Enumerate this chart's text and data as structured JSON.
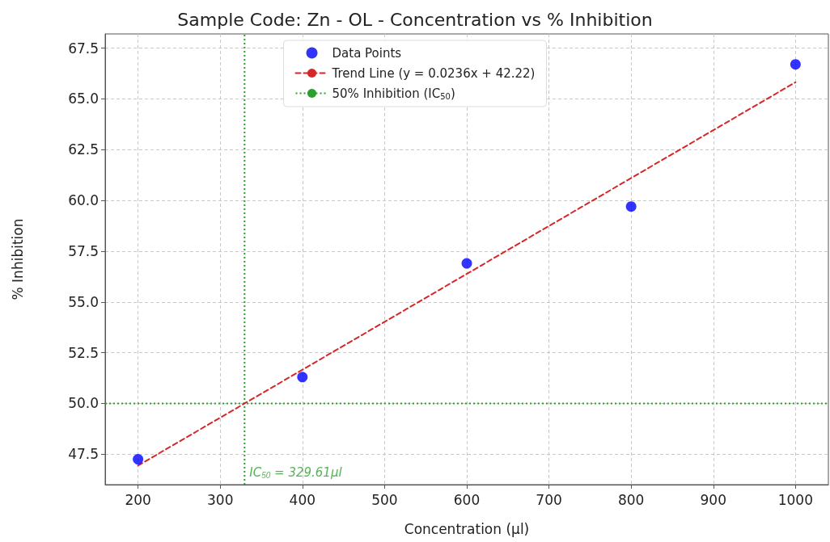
{
  "chart_data": {
    "type": "scatter",
    "title": "Sample Code: Zn - OL - Concentration vs % Inhibition",
    "xlabel": "Concentration (μl)",
    "ylabel": "% Inhibition",
    "x": [
      200,
      400,
      600,
      800,
      1000
    ],
    "series": [
      {
        "name": "Data Points",
        "color": "#0000ff",
        "marker": "circle",
        "values": [
          47.25,
          51.3,
          56.9,
          59.7,
          66.7
        ]
      },
      {
        "name": "Trend Line (y = 0.0236x + 42.22)",
        "type": "line",
        "color": "#d62728",
        "line_style": "dashed",
        "marker": "none",
        "x": [
          200,
          1000
        ],
        "values": [
          46.94,
          65.82
        ]
      }
    ],
    "ref_lines": [
      {
        "axis": "y",
        "value": 50,
        "label": "50% Inhibition (IC$_{50}$)",
        "color": "#2ca02c",
        "line_style": "dotted"
      },
      {
        "axis": "x",
        "value": 329.61,
        "label": "IC$_{50}$ = 329.61μl",
        "color": "#2ca02c",
        "line_style": "dotted"
      }
    ],
    "xlim": [
      160,
      1040
    ],
    "xticks": [
      200,
      300,
      400,
      500,
      600,
      700,
      800,
      900,
      1000
    ],
    "ylim": [
      46,
      68.2
    ],
    "yticks": [
      47.5,
      {
        "value": 50,
        "label": "50.0"
      },
      52.5,
      {
        "value": 55,
        "label": "55.0"
      },
      57.5,
      {
        "value": 60,
        "label": "60.0"
      },
      62.5,
      {
        "value": 65,
        "label": "65.0"
      },
      67.5
    ],
    "grid": true,
    "legend": "top"
  }
}
